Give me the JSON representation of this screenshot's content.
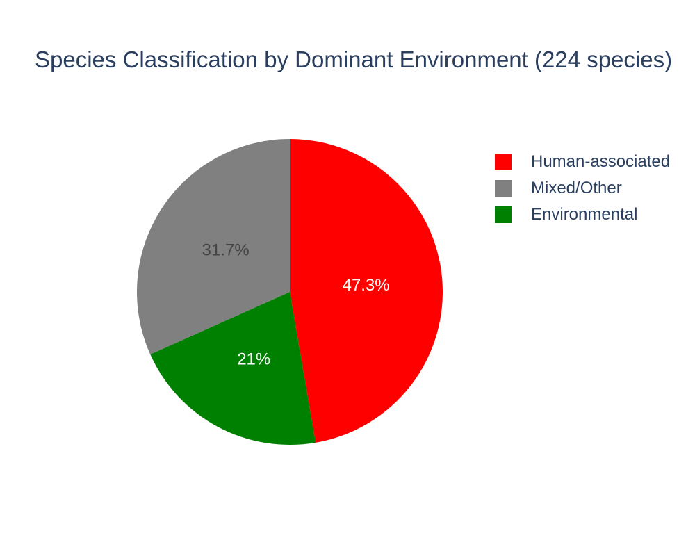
{
  "chart_data": {
    "type": "pie",
    "title": "Species Classification by Dominant Environment (224 species)",
    "slices": [
      {
        "label": "Human-associated",
        "value": 47.3,
        "display": "47.3%",
        "color": "#ff0000",
        "text_color": "#ffffff"
      },
      {
        "label": "Environmental",
        "value": 21.0,
        "display": "21%",
        "color": "#008000",
        "text_color": "#ffffff"
      },
      {
        "label": "Mixed/Other",
        "value": 31.7,
        "display": "31.7%",
        "color": "#808080",
        "text_color": "#444444"
      }
    ],
    "legend": {
      "placement": "right",
      "items": [
        {
          "label": "Human-associated",
          "color": "#ff0000"
        },
        {
          "label": "Mixed/Other",
          "color": "#808080"
        },
        {
          "label": "Environmental",
          "color": "#008000"
        }
      ]
    },
    "direction": "clockwise",
    "start": "top"
  }
}
